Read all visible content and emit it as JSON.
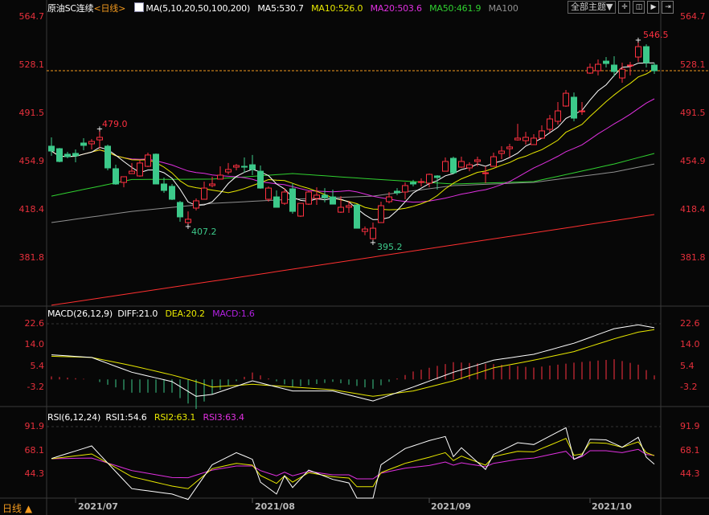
{
  "header": {
    "symbol": "原油SC连续",
    "period": "<日线>",
    "ma_label": "MA(5,10,20,50,100,200)",
    "ma5": "MA5:530.7",
    "ma10": "MA10:526.0",
    "ma20": "MA20:503.6",
    "ma50": "MA50:461.9",
    "ma100": "MA100",
    "theme_button": "全部主题▼",
    "icon_buttons": [
      "grid-icon",
      "split-icon",
      "play-icon",
      "exit-icon"
    ]
  },
  "macd_header": {
    "label": "MACD(26,12,9)",
    "diff": "DIFF:21.0",
    "dea": "DEA:20.2",
    "macd": "MACD:1.6"
  },
  "rsi_header": {
    "label": "RSI(6,12,24)",
    "rsi1": "RSI1:54.6",
    "rsi2": "RSI2:63.1",
    "rsi3": "RSI3:63.4"
  },
  "bottom": {
    "period_label": "日线 ▲",
    "dates": [
      "2021/07",
      "2021/08",
      "2021/09",
      "2021/10"
    ]
  },
  "colors": {
    "up": "#ff3040",
    "down": "#3cc98a",
    "ma5": "#ffffff",
    "ma10": "#e8e800",
    "ma20": "#e030e0",
    "ma50": "#30d030",
    "ma100": "#909090",
    "ma200": "#ff3030",
    "axis": "#e8303c",
    "last_price_line": "#f39a1e"
  },
  "chart_data": [
    {
      "type": "candlestick",
      "title": "原油SC连续",
      "y_ticks": [
        "564.7",
        "528.1",
        "491.5",
        "454.9",
        "418.4",
        "381.8"
      ],
      "ylim": [
        381.8,
        564.7
      ],
      "annotations": {
        "high_1": "479.0",
        "low_1": "407.2",
        "low_2": "395.2",
        "high_2": "546.5"
      },
      "ohlc": [
        [
          466.5,
          473.2,
          459.2,
          462.8
        ],
        [
          464.6,
          465.2,
          454.3,
          454.9
        ],
        [
          460.4,
          462.2,
          457.3,
          458.5
        ],
        [
          461.0,
          464.0,
          454.3,
          459.2
        ],
        [
          468.9,
          472.6,
          463.4,
          467.1
        ],
        [
          468.3,
          471.9,
          464.0,
          470.1
        ],
        [
          471.3,
          479.0,
          464.6,
          473.2
        ],
        [
          466.5,
          467.7,
          448.2,
          450.0
        ],
        [
          449.4,
          452.4,
          437.2,
          437.8
        ],
        [
          439.0,
          443.3,
          435.3,
          443.3
        ],
        [
          445.7,
          453.7,
          445.7,
          447.5
        ],
        [
          443.9,
          456.1,
          443.3,
          453.7
        ],
        [
          451.2,
          461.6,
          450.6,
          459.8
        ],
        [
          460.4,
          461.0,
          437.8,
          437.8
        ],
        [
          437.8,
          442.7,
          431.1,
          432.9
        ],
        [
          436.0,
          437.8,
          425.6,
          426.2
        ],
        [
          423.8,
          425.0,
          409.1,
          412.8
        ],
        [
          408.5,
          417.0,
          407.2,
          411.0
        ],
        [
          419.5,
          426.8,
          417.7,
          425.0
        ],
        [
          426.2,
          439.6,
          426.2,
          434.7
        ],
        [
          436.6,
          443.3,
          435.3,
          437.8
        ],
        [
          441.5,
          451.2,
          441.5,
          444.5
        ],
        [
          446.9,
          453.7,
          445.1,
          448.8
        ],
        [
          450.6,
          453.0,
          448.2,
          451.8
        ],
        [
          451.2,
          457.9,
          446.3,
          450.6
        ],
        [
          452.4,
          459.8,
          444.5,
          448.8
        ],
        [
          447.5,
          451.8,
          434.1,
          434.7
        ],
        [
          426.2,
          435.9,
          424.4,
          434.7
        ],
        [
          428.0,
          432.9,
          420.1,
          420.1
        ],
        [
          423.1,
          434.7,
          421.9,
          431.7
        ],
        [
          434.1,
          438.4,
          415.2,
          417.0
        ],
        [
          413.4,
          423.1,
          412.8,
          423.1
        ],
        [
          422.5,
          432.9,
          421.9,
          431.7
        ],
        [
          426.8,
          435.3,
          421.9,
          429.3
        ],
        [
          429.3,
          434.7,
          423.8,
          427.4
        ],
        [
          428.0,
          433.5,
          422.5,
          422.5
        ],
        [
          416.4,
          428.6,
          415.8,
          420.1
        ],
        [
          420.1,
          425.0,
          415.8,
          421.3
        ],
        [
          421.9,
          422.5,
          404.2,
          404.2
        ],
        [
          401.8,
          405.5,
          398.9,
          403.6
        ],
        [
          396.3,
          408.5,
          395.2,
          404.2
        ],
        [
          408.5,
          424.4,
          408.5,
          421.3
        ],
        [
          424.4,
          431.7,
          423.1,
          428.0
        ],
        [
          432.3,
          434.7,
          429.3,
          431.1
        ],
        [
          431.7,
          439.0,
          426.2,
          436.6
        ],
        [
          439.0,
          440.9,
          436.0,
          437.8
        ],
        [
          439.0,
          442.1,
          436.0,
          439.6
        ],
        [
          438.4,
          445.7,
          435.3,
          445.1
        ],
        [
          443.9,
          444.5,
          433.5,
          442.7
        ],
        [
          447.5,
          457.9,
          447.5,
          454.9
        ],
        [
          457.3,
          458.5,
          445.1,
          446.3
        ],
        [
          450.6,
          458.5,
          450.0,
          454.9
        ],
        [
          450.0,
          454.3,
          447.5,
          452.4
        ],
        [
          454.9,
          458.5,
          451.2,
          456.1
        ],
        [
          445.7,
          451.2,
          438.4,
          446.3
        ],
        [
          451.2,
          461.6,
          451.2,
          458.5
        ],
        [
          461.0,
          466.5,
          456.7,
          462.8
        ],
        [
          464.6,
          468.3,
          458.0,
          465.9
        ],
        [
          471.3,
          483.5,
          470.7,
          472.6
        ],
        [
          470.7,
          477.4,
          467.7,
          473.2
        ],
        [
          467.7,
          475.6,
          467.7,
          472.6
        ],
        [
          472.6,
          482.3,
          472.0,
          478.1
        ],
        [
          479.3,
          490.3,
          476.8,
          487.2
        ],
        [
          485.4,
          500.0,
          482.9,
          493.3
        ],
        [
          497.0,
          509.2,
          496.4,
          506.7
        ],
        [
          503.7,
          507.3,
          485.4,
          487.8
        ],
        [
          492.7,
          500.0,
          490.3,
          493.3
        ],
        [
          522.0,
          529.3,
          521.4,
          526.3
        ],
        [
          523.8,
          532.4,
          520.2,
          528.7
        ],
        [
          531.1,
          534.2,
          526.3,
          529.3
        ],
        [
          528.1,
          534.8,
          519.5,
          523.2
        ],
        [
          518.3,
          529.9,
          514.7,
          525.0
        ],
        [
          527.5,
          530.5,
          520.2,
          528.1
        ],
        [
          534.2,
          546.5,
          530.5,
          542.1
        ],
        [
          542.1,
          543.9,
          526.3,
          529.9
        ],
        [
          528.1,
          529.9,
          521.4,
          523.8
        ]
      ],
      "ma_long": {
        "MA50": [
          [
            0,
            428.6
          ],
          [
            10,
            441.2
          ],
          [
            20,
            441.5
          ],
          [
            30,
            445.7
          ],
          [
            40,
            441.5
          ],
          [
            50,
            437.8
          ],
          [
            60,
            439.6
          ],
          [
            70,
            453.0
          ],
          [
            75,
            461.0
          ]
        ],
        "MA100": [
          [
            0,
            408.5
          ],
          [
            10,
            417.0
          ],
          [
            20,
            423.1
          ],
          [
            30,
            426.2
          ],
          [
            40,
            428.6
          ],
          [
            50,
            436.6
          ],
          [
            60,
            439.0
          ],
          [
            70,
            446.9
          ],
          [
            75,
            453.0
          ]
        ],
        "MA200": [
          [
            0,
            345.7
          ],
          [
            25,
            368.5
          ],
          [
            50,
            391.5
          ],
          [
            75,
            414.6
          ]
        ]
      },
      "last_price": 523.8
    },
    {
      "type": "line",
      "title": "MACD(26,12,9)",
      "y_ticks": [
        "22.6",
        "14.0",
        "5.4",
        "-3.2"
      ],
      "diff": [
        [
          0,
          10.0
        ],
        [
          5,
          8.9
        ],
        [
          10,
          2.9
        ],
        [
          15,
          -0.9
        ],
        [
          18,
          -6.9
        ],
        [
          20,
          -6.1
        ],
        [
          25,
          -0.6
        ],
        [
          30,
          -4.7
        ],
        [
          35,
          -4.7
        ],
        [
          40,
          -8.8
        ],
        [
          45,
          -3.1
        ],
        [
          50,
          2.9
        ],
        [
          55,
          7.8
        ],
        [
          60,
          10.2
        ],
        [
          65,
          14.7
        ],
        [
          70,
          20.6
        ],
        [
          73,
          22.2
        ],
        [
          75,
          21.0
        ]
      ],
      "dea": [
        [
          0,
          9.4
        ],
        [
          5,
          8.9
        ],
        [
          10,
          5.6
        ],
        [
          15,
          1.8
        ],
        [
          18,
          -0.9
        ],
        [
          20,
          -3.1
        ],
        [
          25,
          -2.0
        ],
        [
          30,
          -3.1
        ],
        [
          35,
          -4.2
        ],
        [
          40,
          -6.9
        ],
        [
          45,
          -4.7
        ],
        [
          50,
          -0.6
        ],
        [
          55,
          4.7
        ],
        [
          60,
          7.8
        ],
        [
          65,
          11.3
        ],
        [
          70,
          16.5
        ],
        [
          73,
          19.2
        ],
        [
          75,
          20.2
        ]
      ]
    },
    {
      "type": "line",
      "title": "RSI(6,12,24)",
      "y_ticks": [
        "91.9",
        "68.1",
        "44.3"
      ],
      "rsi1": [
        [
          0,
          60.3
        ],
        [
          5,
          72.9
        ],
        [
          10,
          30.0
        ],
        [
          15,
          24.6
        ],
        [
          17,
          19.2
        ],
        [
          20,
          54.1
        ],
        [
          23,
          66.2
        ],
        [
          25,
          59.5
        ],
        [
          26,
          36.6
        ],
        [
          28,
          24.6
        ],
        [
          29,
          42.9
        ],
        [
          30,
          31.2
        ],
        [
          32,
          48.7
        ],
        [
          35,
          39.3
        ],
        [
          37,
          35.8
        ],
        [
          38,
          20.5
        ],
        [
          40,
          20.5
        ],
        [
          41,
          54.1
        ],
        [
          44,
          70.3
        ],
        [
          47,
          78.3
        ],
        [
          49,
          82.4
        ],
        [
          50,
          62.2
        ],
        [
          51,
          71.1
        ],
        [
          54,
          49.3
        ],
        [
          55,
          64.3
        ],
        [
          58,
          76.2
        ],
        [
          60,
          74.3
        ],
        [
          64,
          91.2
        ],
        [
          65,
          59.5
        ],
        [
          66,
          63.5
        ],
        [
          67,
          79.6
        ],
        [
          69,
          79.0
        ],
        [
          71,
          71.6
        ],
        [
          73,
          81.6
        ],
        [
          74,
          61.6
        ],
        [
          75,
          54.6
        ]
      ],
      "rsi2": [
        [
          0,
          60.0
        ],
        [
          5,
          64.9
        ],
        [
          10,
          42.0
        ],
        [
          15,
          32.6
        ],
        [
          17,
          30.0
        ],
        [
          20,
          50.1
        ],
        [
          23,
          55.4
        ],
        [
          25,
          53.6
        ],
        [
          26,
          43.3
        ],
        [
          28,
          35.3
        ],
        [
          29,
          42.9
        ],
        [
          30,
          36.6
        ],
        [
          32,
          46.1
        ],
        [
          35,
          42.0
        ],
        [
          37,
          40.7
        ],
        [
          38,
          32.0
        ],
        [
          40,
          32.0
        ],
        [
          41,
          46.1
        ],
        [
          44,
          55.4
        ],
        [
          47,
          61.6
        ],
        [
          49,
          66.2
        ],
        [
          50,
          58.2
        ],
        [
          51,
          62.7
        ],
        [
          54,
          53.6
        ],
        [
          55,
          62.2
        ],
        [
          58,
          67.5
        ],
        [
          60,
          67.0
        ],
        [
          64,
          80.4
        ],
        [
          65,
          63.5
        ],
        [
          66,
          64.9
        ],
        [
          67,
          76.2
        ],
        [
          69,
          75.6
        ],
        [
          71,
          71.6
        ],
        [
          73,
          77.0
        ],
        [
          74,
          66.2
        ],
        [
          75,
          63.1
        ]
      ],
      "rsi3": [
        [
          0,
          60.0
        ],
        [
          5,
          60.8
        ],
        [
          10,
          48.2
        ],
        [
          15,
          41.2
        ],
        [
          17,
          41.0
        ],
        [
          20,
          48.7
        ],
        [
          23,
          52.8
        ],
        [
          25,
          52.8
        ],
        [
          26,
          48.2
        ],
        [
          28,
          42.9
        ],
        [
          29,
          46.6
        ],
        [
          30,
          42.9
        ],
        [
          32,
          47.4
        ],
        [
          35,
          43.9
        ],
        [
          37,
          43.9
        ],
        [
          38,
          39.9
        ],
        [
          40,
          39.9
        ],
        [
          41,
          45.5
        ],
        [
          44,
          50.6
        ],
        [
          47,
          53.3
        ],
        [
          49,
          56.8
        ],
        [
          50,
          53.6
        ],
        [
          51,
          56.0
        ],
        [
          54,
          52.0
        ],
        [
          55,
          55.4
        ],
        [
          58,
          59.5
        ],
        [
          60,
          60.8
        ],
        [
          64,
          67.5
        ],
        [
          65,
          59.5
        ],
        [
          66,
          62.2
        ],
        [
          67,
          68.1
        ],
        [
          69,
          68.1
        ],
        [
          71,
          66.2
        ],
        [
          73,
          69.5
        ],
        [
          74,
          64.3
        ],
        [
          75,
          63.4
        ]
      ]
    }
  ]
}
